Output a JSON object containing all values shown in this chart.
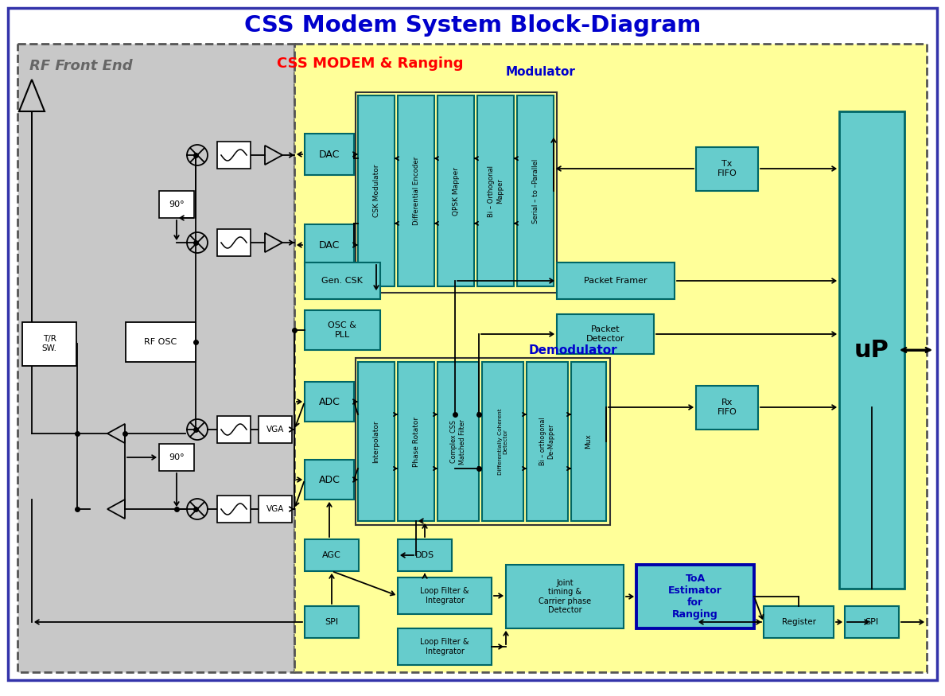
{
  "title": "CSS Modem System Block-Diagram",
  "title_color": "#0000CC",
  "title_fontsize": 21,
  "bg_outer": "#FFFFFF",
  "bg_rf": "#C8C8C8",
  "bg_modem": "#FFFF99",
  "tc": "#66CCCC",
  "te": "#006666",
  "rf_label": "RF Front End",
  "modem_label": "CSS MODEM & Ranging",
  "mod_label": "Modulator",
  "demod_label": "Demodulator",
  "uP_label": "uP"
}
